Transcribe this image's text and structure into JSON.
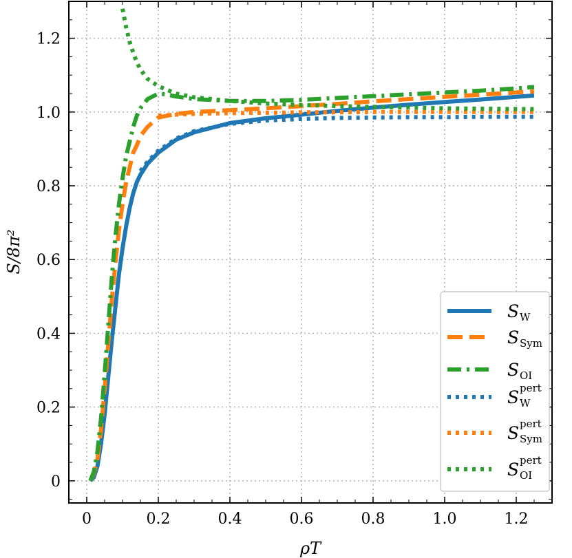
{
  "chart_data": {
    "type": "line",
    "xlabel": "ρT",
    "ylabel": "S/8π²",
    "xlim": [
      -0.05,
      1.3
    ],
    "ylim": [
      -0.06,
      1.3
    ],
    "x_ticks": [
      0,
      0.2,
      0.4,
      0.6,
      0.8,
      1.0,
      1.2
    ],
    "x_tick_labels": [
      "0",
      "0.2",
      "0.4",
      "0.6",
      "0.8",
      "1.0",
      "1.2"
    ],
    "y_ticks": [
      0,
      0.2,
      0.4,
      0.6,
      0.8,
      1.0,
      1.2
    ],
    "y_tick_labels": [
      "0",
      "0.2",
      "0.4",
      "0.6",
      "0.8",
      "1.0",
      "1.2"
    ],
    "grid": true,
    "legend_position": "lower-right",
    "series": [
      {
        "name": "S_W",
        "label_main": "S",
        "label_sub": "W",
        "label_sup": "",
        "color": "#1f77b4",
        "style": "solid",
        "x": [
          0.01,
          0.02,
          0.03,
          0.04,
          0.05,
          0.06,
          0.07,
          0.08,
          0.09,
          0.1,
          0.11,
          0.12,
          0.13,
          0.14,
          0.15,
          0.17,
          0.2,
          0.25,
          0.3,
          0.4,
          0.5,
          0.6,
          0.7,
          0.8,
          0.9,
          1.0,
          1.1,
          1.2,
          1.25
        ],
        "y": [
          0.0,
          0.01,
          0.04,
          0.1,
          0.18,
          0.28,
          0.38,
          0.47,
          0.56,
          0.63,
          0.69,
          0.74,
          0.78,
          0.81,
          0.83,
          0.86,
          0.89,
          0.925,
          0.945,
          0.97,
          0.983,
          0.993,
          1.003,
          1.012,
          1.02,
          1.027,
          1.034,
          1.041,
          1.045
        ]
      },
      {
        "name": "S_Sym",
        "label_main": "S",
        "label_sub": "Sym",
        "label_sup": "",
        "color": "#ff7f0e",
        "style": "dashed",
        "x": [
          0.01,
          0.02,
          0.03,
          0.04,
          0.05,
          0.06,
          0.07,
          0.08,
          0.09,
          0.1,
          0.11,
          0.12,
          0.13,
          0.14,
          0.15,
          0.17,
          0.2,
          0.25,
          0.3,
          0.4,
          0.5,
          0.6,
          0.7,
          0.8,
          0.9,
          1.0,
          1.1,
          1.2,
          1.25
        ],
        "y": [
          0.0,
          0.02,
          0.06,
          0.14,
          0.25,
          0.37,
          0.49,
          0.59,
          0.68,
          0.75,
          0.81,
          0.85,
          0.89,
          0.91,
          0.935,
          0.96,
          0.985,
          0.995,
          1.0,
          1.005,
          1.01,
          1.016,
          1.022,
          1.029,
          1.035,
          1.041,
          1.047,
          1.053,
          1.056
        ]
      },
      {
        "name": "S_OI",
        "label_main": "S",
        "label_sub": "OI",
        "label_sup": "",
        "color": "#2ca02c",
        "style": "dashdot",
        "x": [
          0.01,
          0.02,
          0.03,
          0.04,
          0.05,
          0.06,
          0.07,
          0.08,
          0.09,
          0.1,
          0.11,
          0.12,
          0.13,
          0.14,
          0.15,
          0.17,
          0.2,
          0.22,
          0.25,
          0.3,
          0.4,
          0.5,
          0.6,
          0.7,
          0.8,
          0.9,
          1.0,
          1.1,
          1.2,
          1.25
        ],
        "y": [
          0.0,
          0.025,
          0.08,
          0.17,
          0.29,
          0.42,
          0.55,
          0.66,
          0.75,
          0.82,
          0.88,
          0.92,
          0.96,
          0.99,
          1.01,
          1.035,
          1.05,
          1.048,
          1.042,
          1.035,
          1.03,
          1.03,
          1.033,
          1.038,
          1.043,
          1.048,
          1.053,
          1.058,
          1.064,
          1.068
        ]
      },
      {
        "name": "S_W^pert",
        "label_main": "S",
        "label_sub": "W",
        "label_sup": "pert",
        "color": "#1f77b4",
        "style": "dotted",
        "x": [
          0.15,
          0.17,
          0.2,
          0.25,
          0.3,
          0.4,
          0.5,
          0.6,
          0.7,
          0.8,
          0.9,
          1.0,
          1.1,
          1.2,
          1.25
        ],
        "y": [
          0.84,
          0.865,
          0.895,
          0.928,
          0.948,
          0.968,
          0.977,
          0.981,
          0.984,
          0.985,
          0.986,
          0.986,
          0.987,
          0.987,
          0.987
        ]
      },
      {
        "name": "S_Sym^pert",
        "label_main": "S",
        "label_sub": "Sym",
        "label_sup": "pert",
        "color": "#ff7f0e",
        "style": "dotted",
        "x": [
          0.2,
          0.25,
          0.3,
          0.4,
          0.5,
          0.6,
          0.7,
          0.8,
          0.9,
          1.0,
          1.1,
          1.2,
          1.25
        ],
        "y": [
          0.99,
          0.993,
          0.995,
          0.997,
          0.998,
          0.999,
          0.999,
          1.0,
          1.0,
          1.0,
          1.0,
          1.0,
          1.0
        ]
      },
      {
        "name": "S_OI^pert",
        "label_main": "S",
        "label_sub": "OI",
        "label_sup": "pert",
        "color": "#2ca02c",
        "style": "dotted",
        "x": [
          0.1,
          0.11,
          0.12,
          0.13,
          0.14,
          0.15,
          0.17,
          0.2,
          0.25,
          0.3,
          0.4,
          0.5,
          0.6,
          0.7,
          0.8,
          0.9,
          1.0,
          1.1,
          1.2,
          1.25
        ],
        "y": [
          1.28,
          1.23,
          1.19,
          1.16,
          1.135,
          1.115,
          1.09,
          1.07,
          1.05,
          1.04,
          1.03,
          1.023,
          1.019,
          1.016,
          1.014,
          1.012,
          1.01,
          1.009,
          1.008,
          1.008
        ]
      }
    ]
  }
}
